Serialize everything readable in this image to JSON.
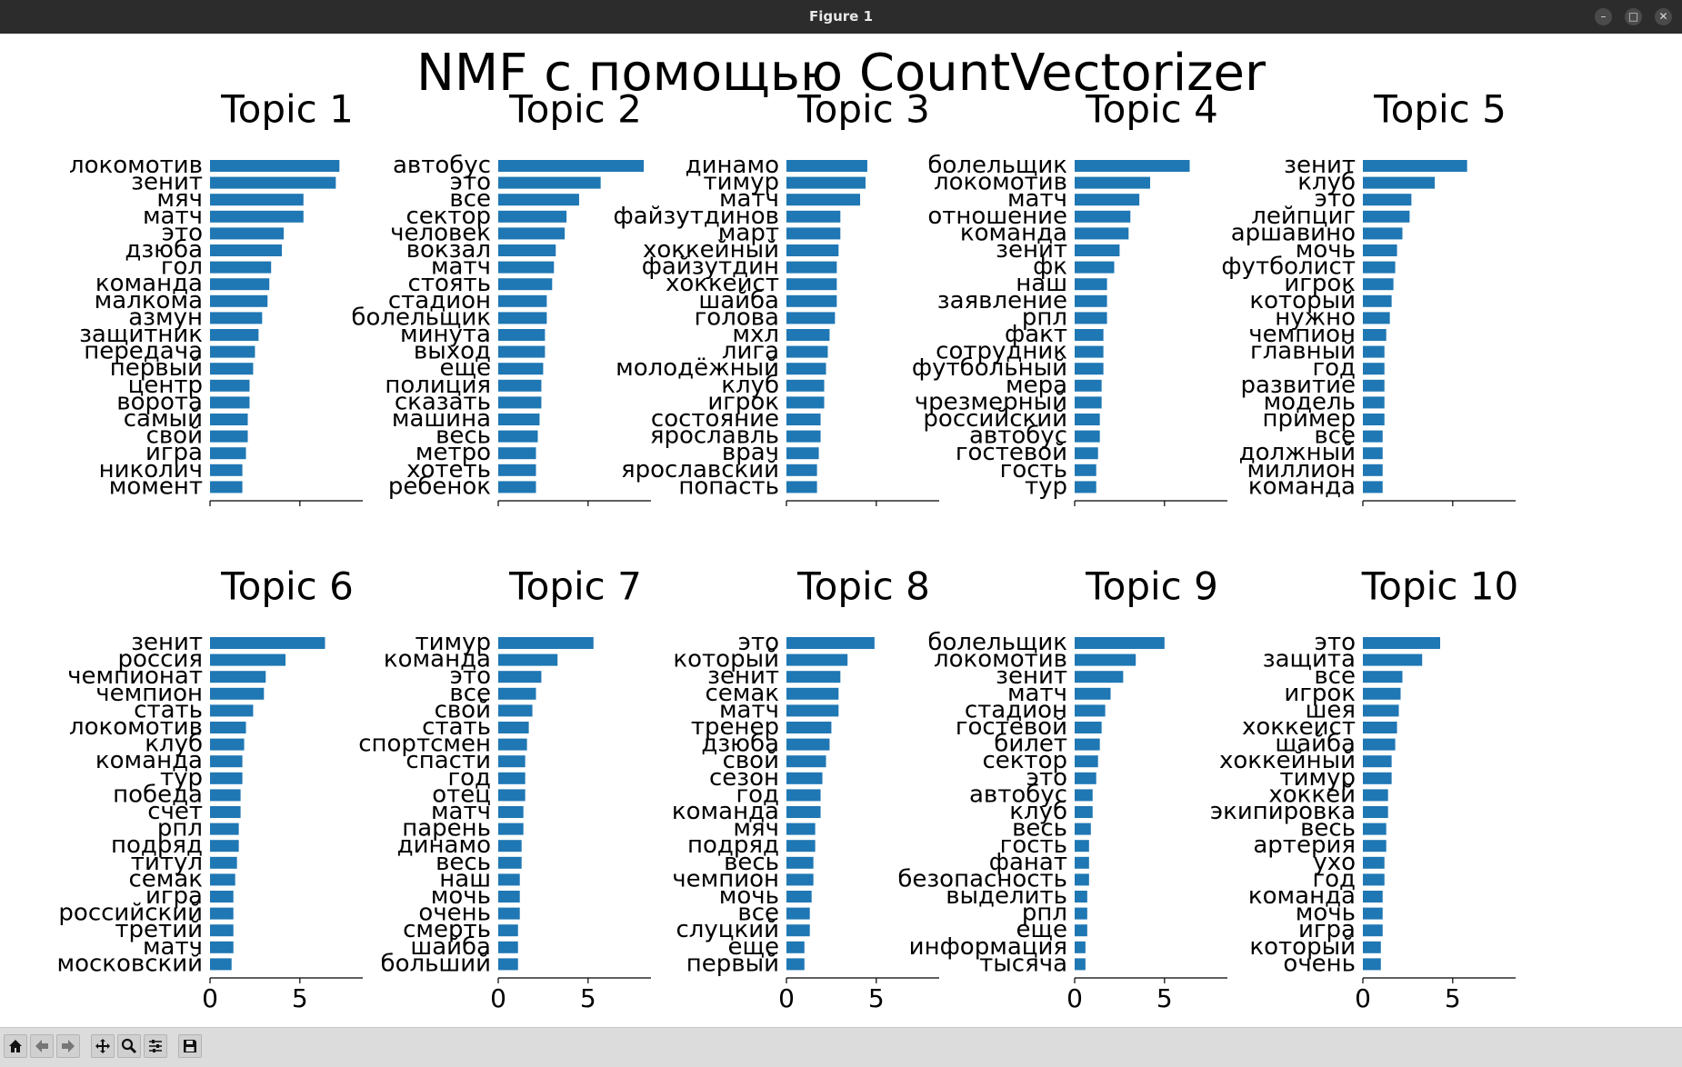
{
  "window": {
    "title": "Figure 1"
  },
  "toolbar": {
    "buttons": [
      {
        "name": "home-button",
        "icon": "home-icon"
      },
      {
        "name": "back-button",
        "icon": "arrow-left-icon"
      },
      {
        "name": "forward-button",
        "icon": "arrow-right-icon"
      },
      {
        "name": "pan-button",
        "icon": "move-icon"
      },
      {
        "name": "zoom-button",
        "icon": "magnifier-icon"
      },
      {
        "name": "configure-subplots-button",
        "icon": "sliders-icon"
      },
      {
        "name": "save-button",
        "icon": "floppy-disk-icon"
      }
    ]
  },
  "chart_data": {
    "type": "bar",
    "orientation": "horizontal",
    "title": "NMF с помощью CountVectorizer",
    "bar_color": "#1f77b4",
    "xlim": [
      0,
      8.5
    ],
    "xticks": [
      "0",
      "5"
    ],
    "xtick_values": [
      0,
      5
    ],
    "show_xtick_labels_rows": [
      2
    ],
    "topics": [
      {
        "title": "Topic 1",
        "words": [
          "локомотив",
          "зенит",
          "мяч",
          "матч",
          "это",
          "дзюба",
          "гол",
          "команда",
          "малкома",
          "азмун",
          "защитник",
          "передача",
          "первый",
          "центр",
          "ворота",
          "самый",
          "свой",
          "игра",
          "николич",
          "момент"
        ],
        "values": [
          7.2,
          7.0,
          5.2,
          5.2,
          4.1,
          4.0,
          3.4,
          3.3,
          3.2,
          2.9,
          2.7,
          2.5,
          2.4,
          2.2,
          2.2,
          2.1,
          2.1,
          2.0,
          1.8,
          1.8
        ]
      },
      {
        "title": "Topic 2",
        "words": [
          "автобус",
          "это",
          "все",
          "сектор",
          "человек",
          "вокзал",
          "матч",
          "стоять",
          "стадион",
          "болельщик",
          "минута",
          "выход",
          "еще",
          "полиция",
          "сказать",
          "машина",
          "весь",
          "метро",
          "хотеть",
          "ребенок"
        ],
        "values": [
          8.1,
          5.7,
          4.5,
          3.8,
          3.7,
          3.2,
          3.1,
          3.0,
          2.7,
          2.7,
          2.6,
          2.6,
          2.5,
          2.4,
          2.4,
          2.3,
          2.2,
          2.1,
          2.1,
          2.1
        ]
      },
      {
        "title": "Topic 3",
        "words": [
          "динамо",
          "тимур",
          "матч",
          "файзутдинов",
          "март",
          "хоккейный",
          "файзутдин",
          "хоккеист",
          "шайба",
          "голова",
          "мхл",
          "лига",
          "молодёжный",
          "клуб",
          "игрок",
          "состояние",
          "ярославль",
          "врач",
          "ярославский",
          "попасть"
        ],
        "values": [
          4.5,
          4.4,
          4.1,
          3.0,
          3.0,
          2.9,
          2.8,
          2.8,
          2.8,
          2.7,
          2.4,
          2.3,
          2.2,
          2.1,
          2.1,
          1.9,
          1.9,
          1.8,
          1.7,
          1.7
        ]
      },
      {
        "title": "Topic 4",
        "words": [
          "болельщик",
          "локомотив",
          "матч",
          "отношение",
          "команда",
          "зенит",
          "фк",
          "наш",
          "заявление",
          "рпл",
          "факт",
          "сотрудник",
          "футбольный",
          "мера",
          "чрезмерный",
          "российский",
          "автобус",
          "гостевой",
          "гость",
          "тур"
        ],
        "values": [
          6.4,
          4.2,
          3.6,
          3.1,
          3.0,
          2.5,
          2.2,
          1.8,
          1.8,
          1.8,
          1.6,
          1.6,
          1.6,
          1.5,
          1.5,
          1.4,
          1.4,
          1.3,
          1.2,
          1.2
        ]
      },
      {
        "title": "Topic 5",
        "words": [
          "зенит",
          "клуб",
          "это",
          "лейпциг",
          "аршавино",
          "мочь",
          "футболист",
          "игрок",
          "который",
          "нужно",
          "чемпион",
          "главный",
          "год",
          "развитие",
          "модель",
          "пример",
          "все",
          "должный",
          "миллион",
          "команда"
        ],
        "values": [
          5.8,
          4.0,
          2.7,
          2.6,
          2.2,
          1.9,
          1.8,
          1.7,
          1.6,
          1.5,
          1.3,
          1.2,
          1.2,
          1.2,
          1.2,
          1.2,
          1.1,
          1.1,
          1.1,
          1.1
        ]
      },
      {
        "title": "Topic 6",
        "words": [
          "зенит",
          "россия",
          "чемпионат",
          "чемпион",
          "стать",
          "локомотив",
          "клуб",
          "команда",
          "тур",
          "победа",
          "счет",
          "рпл",
          "подряд",
          "титул",
          "семак",
          "игра",
          "российский",
          "третий",
          "матч",
          "московский"
        ],
        "values": [
          6.4,
          4.2,
          3.1,
          3.0,
          2.4,
          2.0,
          1.9,
          1.8,
          1.8,
          1.7,
          1.7,
          1.6,
          1.6,
          1.5,
          1.4,
          1.3,
          1.3,
          1.3,
          1.3,
          1.2
        ]
      },
      {
        "title": "Topic 7",
        "words": [
          "тимур",
          "команда",
          "это",
          "все",
          "свой",
          "стать",
          "спортсмен",
          "спасти",
          "год",
          "отец",
          "матч",
          "парень",
          "динамо",
          "весь",
          "наш",
          "мочь",
          "очень",
          "смерть",
          "шайба",
          "больший"
        ],
        "values": [
          5.3,
          3.3,
          2.4,
          2.1,
          1.9,
          1.7,
          1.6,
          1.5,
          1.5,
          1.5,
          1.4,
          1.4,
          1.3,
          1.3,
          1.2,
          1.2,
          1.2,
          1.1,
          1.1,
          1.1
        ]
      },
      {
        "title": "Topic 8",
        "words": [
          "это",
          "который",
          "зенит",
          "семак",
          "матч",
          "тренер",
          "дзюба",
          "свой",
          "сезон",
          "год",
          "команда",
          "мяч",
          "подряд",
          "весь",
          "чемпион",
          "мочь",
          "все",
          "слуцкий",
          "еще",
          "первый"
        ],
        "values": [
          4.9,
          3.4,
          3.0,
          2.9,
          2.9,
          2.5,
          2.4,
          2.2,
          2.0,
          1.9,
          1.9,
          1.6,
          1.6,
          1.5,
          1.5,
          1.4,
          1.3,
          1.3,
          1.0,
          1.0
        ]
      },
      {
        "title": "Topic 9",
        "words": [
          "болельщик",
          "локомотив",
          "зенит",
          "матч",
          "стадион",
          "гостевой",
          "билет",
          "сектор",
          "это",
          "автобус",
          "клуб",
          "весь",
          "гость",
          "фанат",
          "безопасность",
          "выделить",
          "рпл",
          "еще",
          "информация",
          "тысяча"
        ],
        "values": [
          5.0,
          3.4,
          2.7,
          2.0,
          1.7,
          1.5,
          1.4,
          1.3,
          1.2,
          1.0,
          1.0,
          0.9,
          0.8,
          0.8,
          0.8,
          0.7,
          0.7,
          0.7,
          0.6,
          0.6
        ]
      },
      {
        "title": "Topic 10",
        "words": [
          "это",
          "защита",
          "все",
          "игрок",
          "шея",
          "хоккеист",
          "шайба",
          "хоккейный",
          "тимур",
          "хоккей",
          "экипировка",
          "весь",
          "артерия",
          "ухо",
          "год",
          "команда",
          "мочь",
          "игра",
          "который",
          "очень"
        ],
        "values": [
          4.3,
          3.3,
          2.2,
          2.1,
          2.0,
          1.9,
          1.8,
          1.6,
          1.6,
          1.4,
          1.4,
          1.3,
          1.3,
          1.2,
          1.2,
          1.1,
          1.1,
          1.1,
          1.0,
          1.0
        ]
      }
    ]
  }
}
